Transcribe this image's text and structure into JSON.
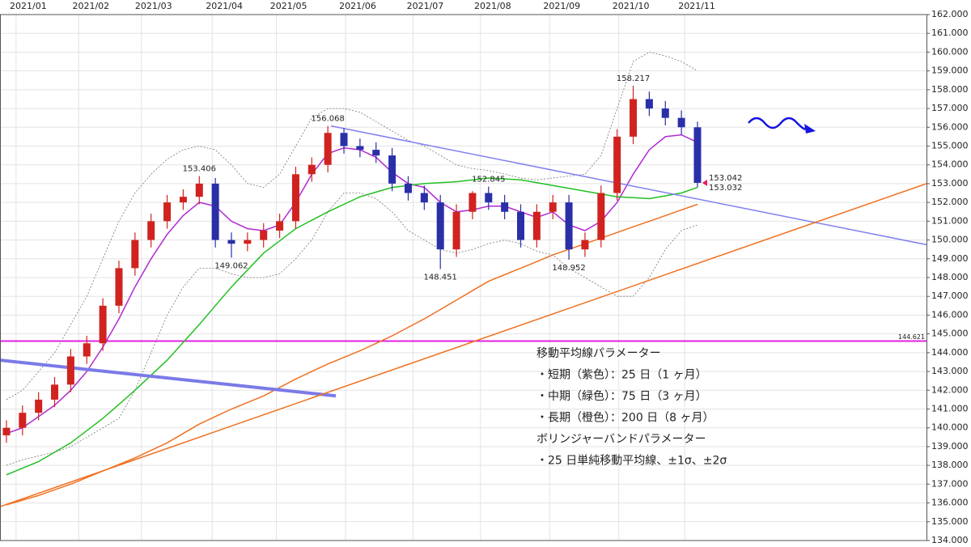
{
  "chart_data": {
    "type": "candlestick",
    "xlim": [
      -0.4,
      57.25
    ],
    "xticks": [
      {
        "value": 0.6,
        "label": "2021/01"
      },
      {
        "value": 4.5,
        "label": "2021/02"
      },
      {
        "value": 8.4,
        "label": "2021/03"
      },
      {
        "value": 12.8,
        "label": "2021/04"
      },
      {
        "value": 16.8,
        "label": "2021/05"
      },
      {
        "value": 21.1,
        "label": "2021/06"
      },
      {
        "value": 25.3,
        "label": "2021/07"
      },
      {
        "value": 29.5,
        "label": "2021/08"
      },
      {
        "value": 33.8,
        "label": "2021/09"
      },
      {
        "value": 38.1,
        "label": "2021/10"
      },
      {
        "value": 42.2,
        "label": "2021/11"
      }
    ],
    "ylim": [
      134,
      162
    ],
    "yticks": [
      {
        "value": 134,
        "label": "134.000"
      },
      {
        "value": 135,
        "label": "135.000"
      },
      {
        "value": 136,
        "label": "136.000"
      },
      {
        "value": 137,
        "label": "137.000"
      },
      {
        "value": 138,
        "label": "138.000"
      },
      {
        "value": 139,
        "label": "139.000"
      },
      {
        "value": 140,
        "label": "140.000"
      },
      {
        "value": 141,
        "label": "141.000"
      },
      {
        "value": 142,
        "label": "142.000"
      },
      {
        "value": 143,
        "label": "143.000"
      },
      {
        "value": 144,
        "label": "144.000"
      },
      {
        "value": 145,
        "label": "145.000"
      },
      {
        "value": 146,
        "label": "146.000"
      },
      {
        "value": 147,
        "label": "147.000"
      },
      {
        "value": 148,
        "label": "148.000"
      },
      {
        "value": 149,
        "label": "149.000"
      },
      {
        "value": 150,
        "label": "150.000"
      },
      {
        "value": 151,
        "label": "151.000"
      },
      {
        "value": 152,
        "label": "152.000"
      },
      {
        "value": 153,
        "label": "153.000"
      },
      {
        "value": 154,
        "label": "154.000"
      },
      {
        "value": 155,
        "label": "155.000"
      },
      {
        "value": 156,
        "label": "156.000"
      },
      {
        "value": 157,
        "label": "157.000"
      },
      {
        "value": 158,
        "label": "158.000"
      },
      {
        "value": 159,
        "label": "159.000"
      },
      {
        "value": 160,
        "label": "160.000"
      },
      {
        "value": 161,
        "label": "161.000"
      },
      {
        "value": 162,
        "label": "162.000"
      }
    ],
    "grid": true,
    "up_color": "#d0231f",
    "down_color": "#2a2fa8",
    "open": [
      139.6,
      140.0,
      140.8,
      141.5,
      142.3,
      143.8,
      144.5,
      146.5,
      148.5,
      150.0,
      151.0,
      152.0,
      152.3,
      153.0,
      150.0,
      149.8,
      150.0,
      150.5,
      151.0,
      153.5,
      154.0,
      155.7,
      155.0,
      154.8,
      154.5,
      153.0,
      152.5,
      152.0,
      149.5,
      151.5,
      152.5,
      152.0,
      151.5,
      150.0,
      151.5,
      152.0,
      149.5,
      150.0,
      152.5,
      155.5,
      157.5,
      157.0,
      156.5,
      156.0
    ],
    "high": [
      140.4,
      141.2,
      141.9,
      142.7,
      144.2,
      144.9,
      146.9,
      148.9,
      150.4,
      151.4,
      152.4,
      152.7,
      153.406,
      153.3,
      150.4,
      150.4,
      150.9,
      151.4,
      153.9,
      154.4,
      156.068,
      155.95,
      155.4,
      155.2,
      154.9,
      153.4,
      152.9,
      152.4,
      151.9,
      152.6,
      152.845,
      152.4,
      151.9,
      151.9,
      152.4,
      152.4,
      150.4,
      152.9,
      155.9,
      158.217,
      157.9,
      157.4,
      156.9,
      156.3
    ],
    "low": [
      139.2,
      139.6,
      140.4,
      141.1,
      141.9,
      143.4,
      144.1,
      146.1,
      148.1,
      149.6,
      150.6,
      151.6,
      151.9,
      149.6,
      149.062,
      149.4,
      149.6,
      150.1,
      150.6,
      153.1,
      153.6,
      154.6,
      154.4,
      154.1,
      152.6,
      152.1,
      151.6,
      148.451,
      149.1,
      151.1,
      151.6,
      151.1,
      149.6,
      149.6,
      151.1,
      148.952,
      149.1,
      149.6,
      152.1,
      155.1,
      156.6,
      156.1,
      155.6,
      152.8
    ],
    "close": [
      140.0,
      140.8,
      141.5,
      142.3,
      143.8,
      144.5,
      146.5,
      148.5,
      150.0,
      151.0,
      152.0,
      152.3,
      153.0,
      150.0,
      149.8,
      150.0,
      150.5,
      151.0,
      153.5,
      154.0,
      155.7,
      155.0,
      154.8,
      154.5,
      153.0,
      152.5,
      152.0,
      149.5,
      151.5,
      152.5,
      152.0,
      151.5,
      150.0,
      151.5,
      152.0,
      149.5,
      150.0,
      152.5,
      155.5,
      157.5,
      157.0,
      156.5,
      156.0,
      153.042
    ],
    "lines": [
      {
        "color": "#b02ad0",
        "width": 1.5,
        "values": [
          139.7,
          140.0,
          140.6,
          141.2,
          142.0,
          143.0,
          144.3,
          145.8,
          147.5,
          149.0,
          150.3,
          151.3,
          152.0,
          151.8,
          151.0,
          150.6,
          150.5,
          150.8,
          152.0,
          153.5,
          154.6,
          154.9,
          154.8,
          154.4,
          153.6,
          153.0,
          152.8,
          152.0,
          151.5,
          151.6,
          151.8,
          151.8,
          151.5,
          151.2,
          151.5,
          150.8,
          150.5,
          151.0,
          152.0,
          153.5,
          154.8,
          155.5,
          155.6,
          155.2
        ]
      },
      {
        "color": "#22c022",
        "width": 1.5,
        "values": [
          137.5,
          137.85,
          138.2,
          138.7,
          139.2,
          139.85,
          140.5,
          141.25,
          142.0,
          142.8,
          143.6,
          144.55,
          145.5,
          146.5,
          147.5,
          148.4,
          149.3,
          149.95,
          150.6,
          151.05,
          151.5,
          151.9,
          152.3,
          152.55,
          152.8,
          152.9,
          153.0,
          153.05,
          153.1,
          153.2,
          153.3,
          153.25,
          153.2,
          153.05,
          152.9,
          152.75,
          152.6,
          152.45,
          152.3,
          152.25,
          152.2,
          152.35,
          152.5,
          152.8
        ]
      },
      {
        "color": "#f07020",
        "width": 1.5,
        "values": [
          135.9,
          136.15,
          136.4,
          136.7,
          137.0,
          137.35,
          137.7,
          138.05,
          138.4,
          138.8,
          139.2,
          139.7,
          140.2,
          140.6,
          141.0,
          141.35,
          141.7,
          142.15,
          142.6,
          143.0,
          143.4,
          143.75,
          144.1,
          144.5,
          144.9,
          145.35,
          145.8,
          146.3,
          146.8,
          147.3,
          147.8,
          148.15,
          148.5,
          148.85,
          149.2,
          149.5,
          149.8,
          150.1,
          150.4,
          150.7,
          151.0,
          151.3,
          151.6,
          151.9
        ]
      },
      {
        "color": "#777777",
        "width": 0.8,
        "dash": "2 2",
        "values": [
          141.5,
          142.0,
          143.0,
          144.0,
          145.5,
          147.0,
          149.0,
          151.0,
          152.5,
          153.5,
          154.3,
          154.8,
          155.0,
          154.8,
          154.0,
          153.0,
          152.8,
          153.5,
          155.0,
          156.5,
          157.0,
          157.0,
          156.8,
          156.3,
          155.8,
          155.3,
          155.0,
          154.5,
          154.0,
          153.8,
          153.7,
          153.5,
          153.3,
          153.2,
          153.3,
          153.4,
          153.5,
          154.5,
          157.0,
          159.5,
          160.0,
          159.8,
          159.5,
          159.0
        ]
      },
      {
        "color": "#777777",
        "width": 0.8,
        "dash": "2 2",
        "values": [
          138.0,
          138.3,
          138.5,
          138.7,
          139.0,
          139.5,
          140.0,
          140.5,
          142.0,
          144.0,
          146.0,
          147.5,
          148.5,
          148.5,
          148.2,
          148.0,
          148.0,
          148.2,
          149.0,
          150.0,
          151.5,
          152.5,
          152.5,
          152.2,
          151.5,
          150.5,
          150.0,
          149.5,
          149.3,
          149.5,
          149.8,
          150.0,
          149.8,
          149.4,
          149.2,
          148.5,
          148.0,
          147.5,
          147.0,
          147.0,
          148.0,
          149.5,
          150.5,
          150.8
        ]
      }
    ],
    "trendlines": [
      {
        "color": "#8080f0",
        "width": 1.5,
        "points": [
          [
            20.2,
            156.07
          ],
          [
            57.25,
            149.75
          ]
        ]
      },
      {
        "color": "#7a7ae8",
        "width": 4,
        "points": [
          [
            -0.4,
            143.6
          ],
          [
            20.5,
            141.7
          ]
        ]
      },
      {
        "color": "#f07020",
        "width": 1.5,
        "points": [
          [
            -0.4,
            135.8
          ],
          [
            57.25,
            153.0
          ]
        ]
      }
    ],
    "hlines": [
      {
        "value": 144.621,
        "color": "#e020e0"
      }
    ],
    "annotations": [
      {
        "text": "153.406",
        "index": 12,
        "color": "#e8700a"
      },
      {
        "text": "149.062",
        "index": 14,
        "color": "#1aa81a"
      },
      {
        "text": "156.068",
        "index": 20,
        "color": "#e8700a"
      },
      {
        "text": "148.451",
        "index": 27,
        "color": "#1aa81a"
      },
      {
        "text": "152.845",
        "index": 30,
        "color": "#e8700a"
      },
      {
        "text": "148.952",
        "index": 35,
        "color": "#1aa81a"
      },
      {
        "text": "158.217",
        "index": 39,
        "color": "#e8700a"
      }
    ],
    "price_labels": [
      {
        "text": "153.042",
        "color": "#e8175d"
      },
      {
        "text": "153.032",
        "color": "#17a2c8"
      }
    ],
    "notes": [
      "移動平均線パラメーター",
      "・短期（紫色）：25 日（1 ヶ月）",
      "・中期（緑色）：75 日（3 ヶ月）",
      "・長期（橙色）：200 日（8 ヶ月）",
      "ボリンジャーバンドパラメーター",
      "・25 日単純移動平均線、±1σ、±2σ"
    ]
  }
}
